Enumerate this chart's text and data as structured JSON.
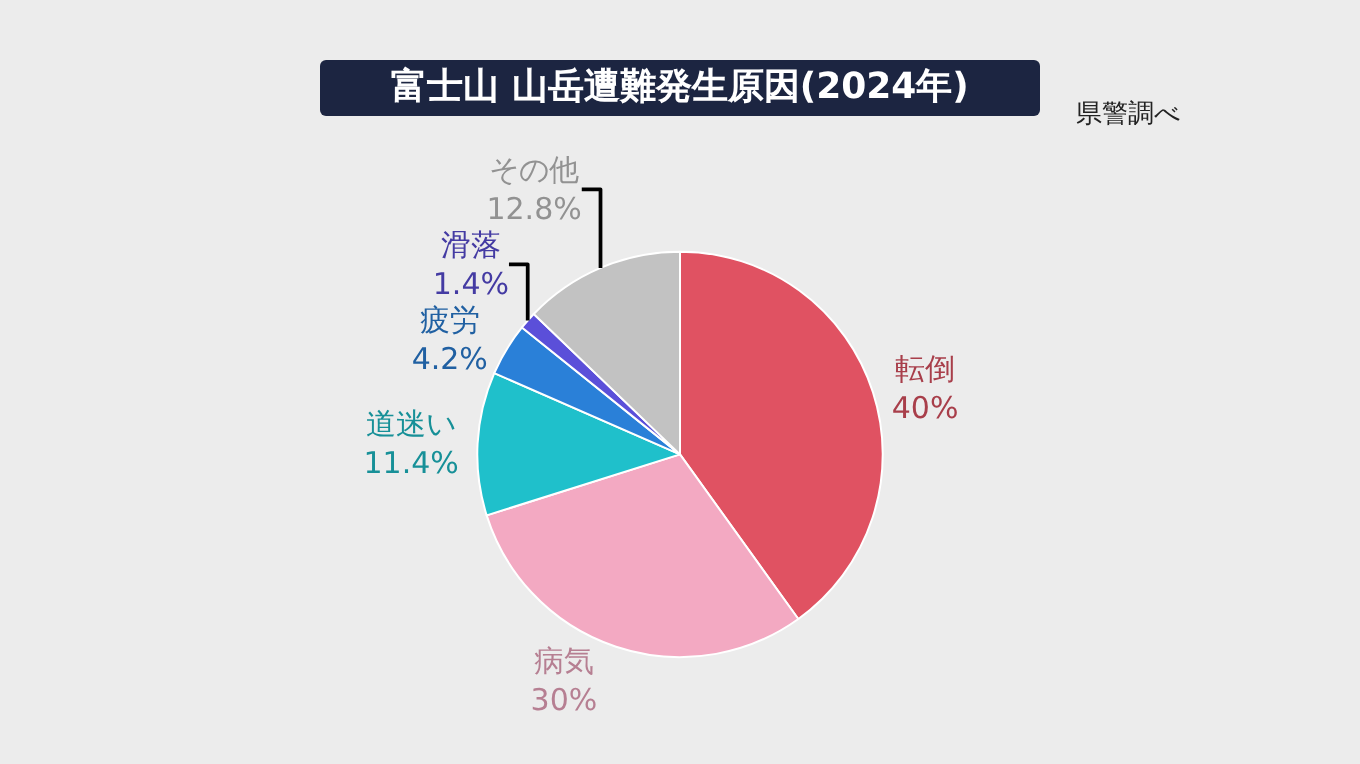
{
  "chart_data": {
    "type": "pie",
    "title": "富士山 山岳遭難発生原因(2024年)",
    "annotations": [
      "県警調べ"
    ],
    "categories": [
      "転倒",
      "病気",
      "道迷い",
      "疲労",
      "滑落",
      "その他"
    ],
    "values": [
      40,
      30,
      11.4,
      4.2,
      1.4,
      12.8
    ],
    "value_labels": [
      "40%",
      "30%",
      "11.4%",
      "4.2%",
      "1.4%",
      "12.8%"
    ],
    "colors": [
      "#e05262",
      "#f3a9c2",
      "#1fc0cb",
      "#2a80d8",
      "#5b4fd9",
      "#c2c2c2"
    ]
  }
}
